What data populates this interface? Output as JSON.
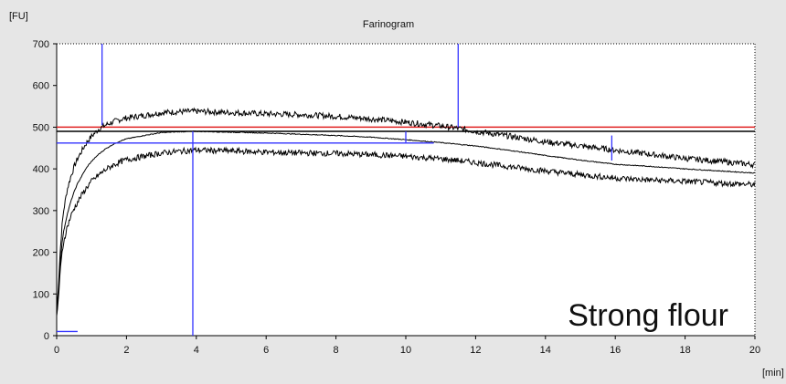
{
  "chart_data": {
    "type": "line",
    "title": "Farinogram",
    "y_unit_label": "[FU]",
    "x_unit_label": "[min]",
    "annotation": "Strong flour",
    "xlim": [
      0,
      20
    ],
    "ylim": [
      0,
      700
    ],
    "x_ticks": [
      0,
      2,
      4,
      6,
      8,
      10,
      12,
      14,
      16,
      18,
      20
    ],
    "y_ticks": [
      0,
      100,
      200,
      300,
      400,
      500,
      600,
      700
    ],
    "grid": false,
    "colors": {
      "plot_bg": "#ffffff",
      "outer_bg": "#e6e6e6",
      "curve": "#000000",
      "marker": "#3333ff",
      "consistency_line": "#e02020",
      "frame": "#000000"
    },
    "series": [
      {
        "x": [
          0,
          0.05,
          0.1,
          0.15,
          0.2,
          0.3,
          0.4,
          0.5,
          0.6,
          0.7,
          0.8,
          0.9,
          1.0,
          1.2,
          1.4,
          1.6,
          1.8,
          2.0,
          2.5,
          3.0,
          3.5,
          4.0,
          5.0,
          6.0,
          7.0,
          8.0,
          9.0,
          10.0,
          11.0,
          11.5,
          12.0,
          13.0,
          14.0,
          15.0,
          16.0,
          17.0,
          18.0,
          19.0,
          20.0
        ],
        "y": [
          60,
          120,
          200,
          260,
          300,
          350,
          380,
          405,
          425,
          440,
          455,
          468,
          478,
          495,
          505,
          512,
          518,
          522,
          528,
          535,
          537,
          538,
          535,
          532,
          530,
          526,
          520,
          512,
          503,
          497,
          490,
          478,
          465,
          455,
          445,
          435,
          425,
          418,
          410
        ]
      },
      {
        "x": [
          0,
          0.05,
          0.1,
          0.15,
          0.2,
          0.3,
          0.4,
          0.5,
          0.6,
          0.7,
          0.8,
          0.9,
          1.0,
          1.2,
          1.4,
          1.6,
          1.8,
          2.0,
          2.5,
          3.0,
          3.5,
          4.0,
          5.0,
          6.0,
          7.0,
          8.0,
          9.0,
          10.0,
          11.0,
          11.5,
          12.0,
          13.0,
          14.0,
          15.0,
          16.0,
          17.0,
          18.0,
          19.0,
          20.0
        ],
        "y": [
          50,
          100,
          170,
          220,
          250,
          290,
          320,
          345,
          365,
          380,
          395,
          408,
          418,
          435,
          448,
          458,
          466,
          472,
          480,
          487,
          489,
          490,
          488,
          486,
          483,
          480,
          476,
          470,
          463,
          459,
          455,
          444,
          432,
          421,
          411,
          406,
          400,
          395,
          390
        ]
      },
      {
        "x": [
          0,
          0.05,
          0.1,
          0.15,
          0.2,
          0.3,
          0.4,
          0.5,
          0.6,
          0.7,
          0.8,
          0.9,
          1.0,
          1.2,
          1.4,
          1.6,
          1.8,
          2.0,
          2.5,
          3.0,
          3.5,
          4.0,
          5.0,
          6.0,
          7.0,
          8.0,
          9.0,
          10.0,
          11.0,
          11.5,
          12.0,
          13.0,
          14.0,
          15.0,
          16.0,
          17.0,
          18.0,
          19.0,
          20.0
        ],
        "y": [
          45,
          90,
          150,
          195,
          225,
          260,
          285,
          305,
          320,
          335,
          348,
          360,
          370,
          385,
          398,
          408,
          416,
          422,
          430,
          438,
          442,
          445,
          443,
          440,
          438,
          437,
          434,
          430,
          424,
          420,
          415,
          405,
          395,
          386,
          378,
          373,
          370,
          366,
          362
        ]
      }
    ],
    "markers": {
      "vertical_lines": [
        {
          "x": 1.3,
          "y_from": 505,
          "y_to": 700
        },
        {
          "x": 3.9,
          "y_from": 0,
          "y_to": 490
        },
        {
          "x": 11.5,
          "y_from": 500,
          "y_to": 700
        },
        {
          "x": 10.0,
          "y_from": 463,
          "y_to": 490
        },
        {
          "x": 15.9,
          "y_from": 420,
          "y_to": 480
        }
      ],
      "horizontal_lines": [
        {
          "y": 462,
          "x_from": 0,
          "x_to": 10.8
        },
        {
          "y": 10,
          "x_from": 0,
          "x_to": 0.6
        }
      ]
    },
    "consistency_band": {
      "y_black": 490,
      "y_red": 500
    }
  }
}
